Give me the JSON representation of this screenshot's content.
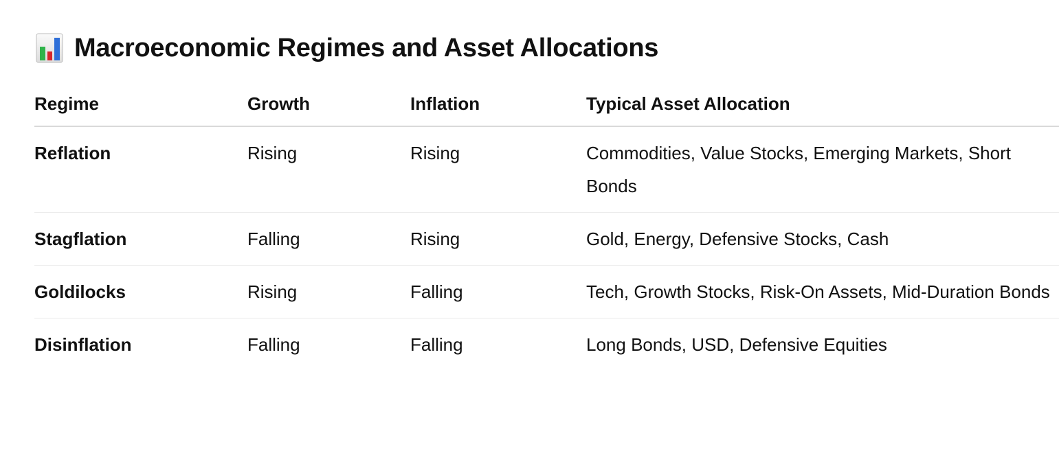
{
  "title": "Macroeconomic Regimes and Asset Allocations",
  "title_icon": "bar-chart-icon",
  "colors": {
    "icon_green": "#2fb34a",
    "icon_red": "#d7262c",
    "icon_blue": "#2f6fd8",
    "header_border": "#d9d9d9",
    "row_border": "#ececec"
  },
  "table": {
    "headers": [
      "Regime",
      "Growth",
      "Inflation",
      "Typical Asset Allocation"
    ],
    "rows": [
      [
        "Reflation",
        "Rising",
        "Rising",
        "Commodities, Value Stocks, Emerging Markets, Short Bonds"
      ],
      [
        "Stagflation",
        "Falling",
        "Rising",
        "Gold, Energy, Defensive Stocks, Cash"
      ],
      [
        "Goldilocks",
        "Rising",
        "Falling",
        "Tech, Growth Stocks, Risk-On Assets, Mid-Duration Bonds"
      ],
      [
        "Disinflation",
        "Falling",
        "Falling",
        "Long Bonds, USD, Defensive Equities"
      ]
    ]
  }
}
